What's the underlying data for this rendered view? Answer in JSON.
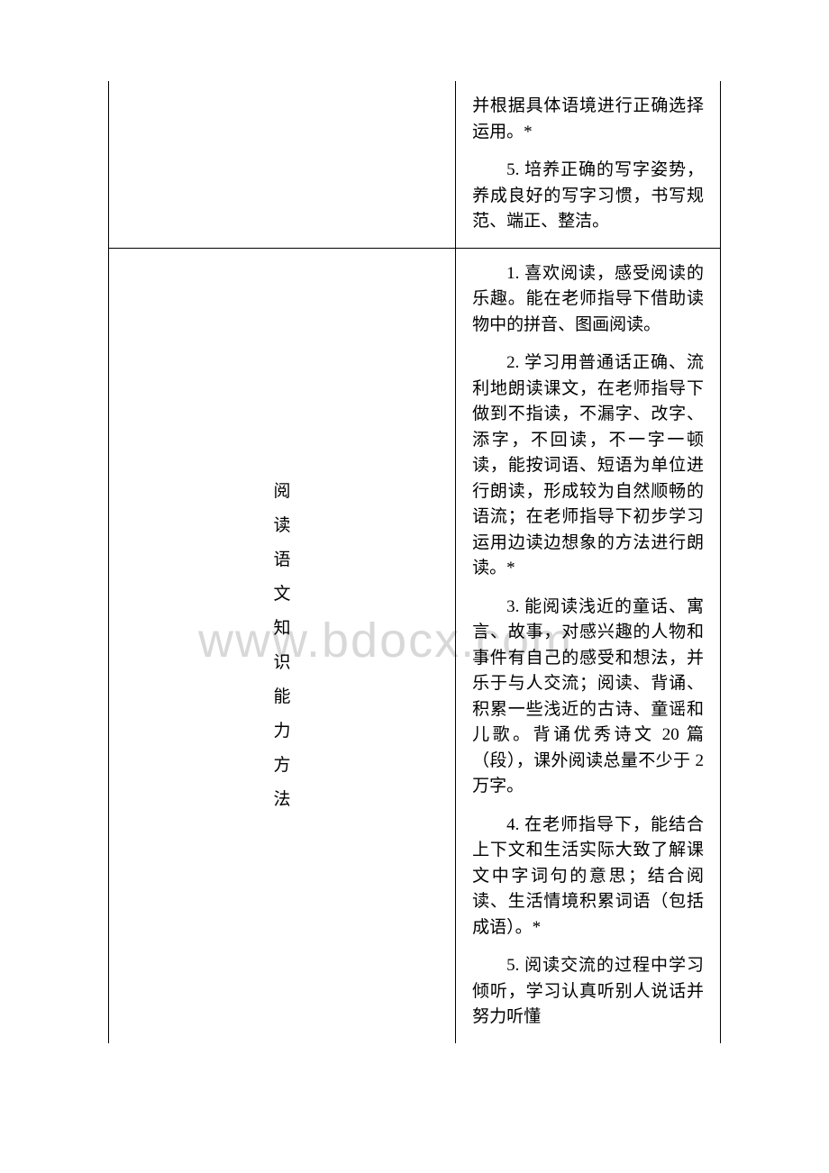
{
  "watermark": "www.bdocx.com",
  "table": {
    "row1": {
      "label": "",
      "content": {
        "p1": "并根据具体语境进行正确选择运用。*",
        "p2": "5. 培养正确的写字姿势，养成良好的写字习惯，书写规范、端正、整洁。"
      }
    },
    "row2": {
      "label_chars": [
        "阅",
        "读",
        "语",
        "文",
        "知",
        "识",
        "能",
        "力",
        "方",
        "法"
      ],
      "content": {
        "p1": "1. 喜欢阅读，感受阅读的乐趣。能在老师指导下借助读物中的拼音、图画阅读。",
        "p2": "2. 学习用普通话正确、流利地朗读课文，在老师指导下做到不指读，不漏字、改字、添字，不回读，不一字一顿读，能按词语、短语为单位进行朗读，形成较为自然顺畅的语流；在老师指导下初步学习运用边读边想象的方法进行朗读。*",
        "p3": "3. 能阅读浅近的童话、寓言、故事，对感兴趣的人物和事件有自己的感受和想法，并乐于与人交流；阅读、背诵、积累一些浅近的古诗、童谣和儿歌。背诵优秀诗文 20 篇（段），课外阅读总量不少于 2 万字。",
        "p4": "4. 在老师指导下，能结合上下文和生活实际大致了解课文中字词句的意思；结合阅读、生活情境积累词语（包括成语）。*",
        "p5": "5. 阅读交流的过程中学习倾听，学习认真听别人说话并努力听懂"
      }
    }
  }
}
